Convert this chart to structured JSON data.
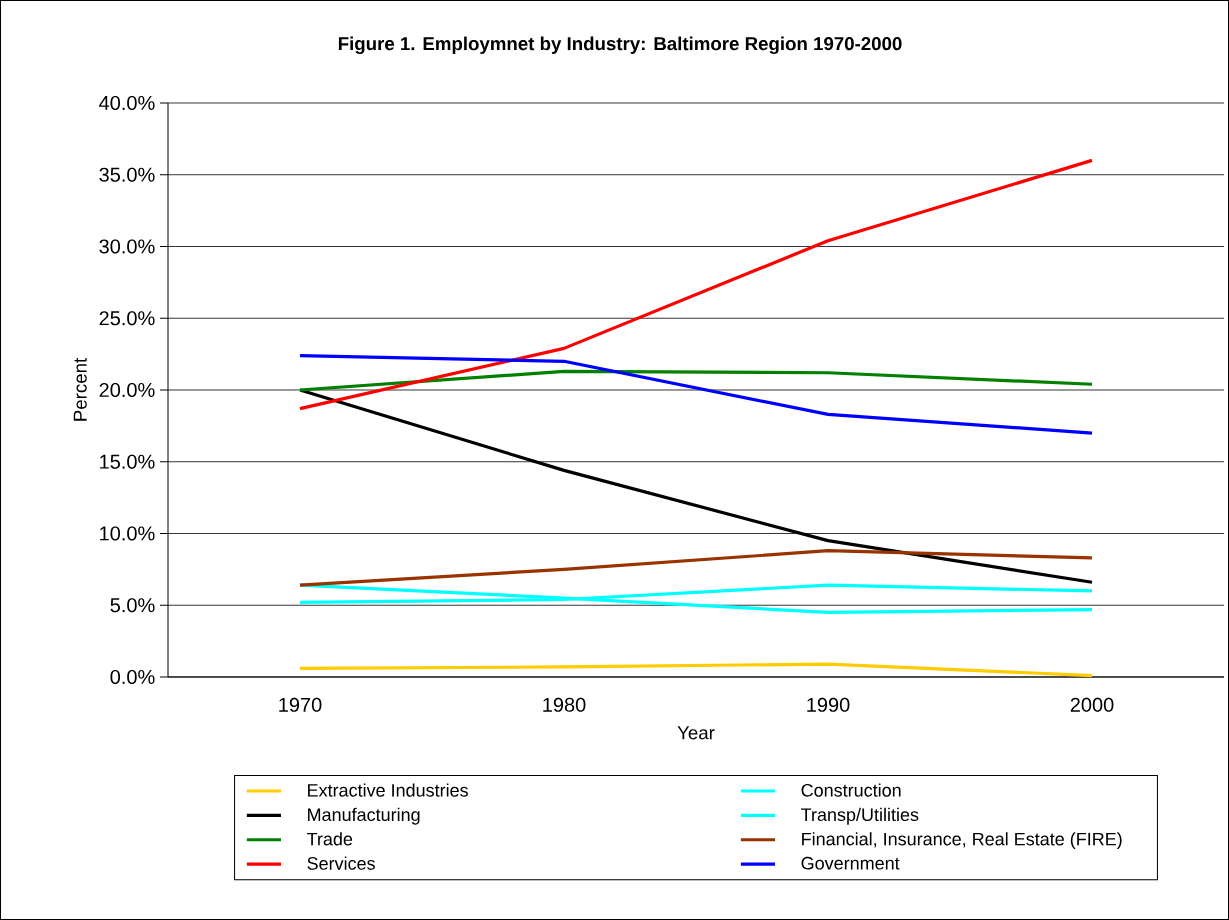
{
  "chart_data": {
    "type": "line",
    "title": "Figure 1. Employmnet by Industry: Baltimore Region 1970-2000",
    "xlabel": "Year",
    "ylabel": "Percent",
    "categories": [
      "1970",
      "1980",
      "1990",
      "2000"
    ],
    "series": [
      {
        "name": "Extractive Industries",
        "color": "#ffcc00",
        "values": [
          0.6,
          0.7,
          0.9,
          0.1
        ]
      },
      {
        "name": "Construction",
        "color": "#00ffff",
        "values": [
          5.2,
          5.4,
          6.4,
          6.0
        ]
      },
      {
        "name": "Manufacturing",
        "color": "#000000",
        "values": [
          20.0,
          14.4,
          9.5,
          6.6
        ]
      },
      {
        "name": "Transp/Utilities",
        "color": "#00ffff",
        "values": [
          6.4,
          5.5,
          4.5,
          4.7
        ]
      },
      {
        "name": "Trade",
        "color": "#008000",
        "values": [
          20.0,
          21.3,
          21.2,
          20.4
        ]
      },
      {
        "name": "Financial, Insurance, Real Estate (FIRE)",
        "color": "#993300",
        "values": [
          6.4,
          7.5,
          8.8,
          8.3
        ]
      },
      {
        "name": "Services",
        "color": "#ff0000",
        "values": [
          18.7,
          22.9,
          30.4,
          36.0
        ]
      },
      {
        "name": "Government",
        "color": "#0000ff",
        "values": [
          22.4,
          22.0,
          18.3,
          17.0
        ]
      }
    ],
    "ylim": [
      0,
      40
    ],
    "yticks": [
      {
        "value": 0,
        "label": "0.0%"
      },
      {
        "value": 5,
        "label": "5.0%"
      },
      {
        "value": 10,
        "label": "10.0%"
      },
      {
        "value": 15,
        "label": "15.0%"
      },
      {
        "value": 20,
        "label": "20.0%"
      },
      {
        "value": 25,
        "label": "25.0%"
      },
      {
        "value": 30,
        "label": "30.0%"
      },
      {
        "value": 35,
        "label": "35.0%"
      },
      {
        "value": 40,
        "label": "40.0%"
      }
    ],
    "grid": "y",
    "legend": "bottom",
    "marker": "none",
    "line_style": "solid"
  }
}
